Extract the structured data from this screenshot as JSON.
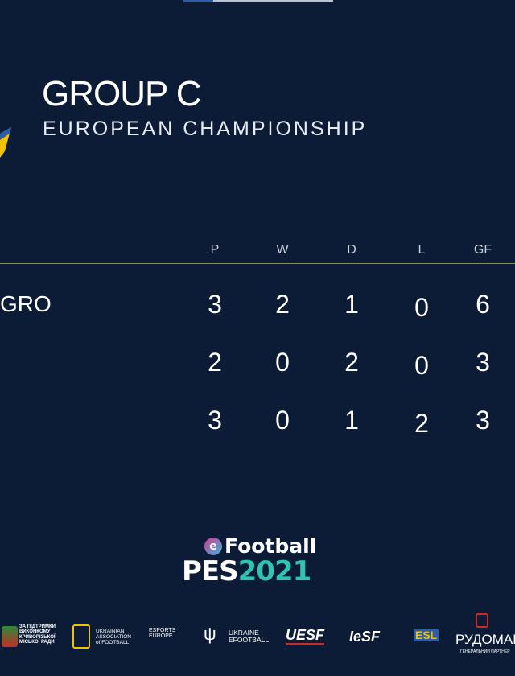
{
  "header": {
    "title": "GROUP C",
    "subtitle": "EUROPEAN CHAMPIONSHIP"
  },
  "table": {
    "columns": [
      "P",
      "W",
      "D",
      "L",
      "GF"
    ],
    "rows": [
      {
        "team": "GRO",
        "values": [
          "3",
          "2",
          "1",
          "0",
          "6"
        ]
      },
      {
        "team": "",
        "values": [
          "2",
          "0",
          "2",
          "0",
          "3"
        ]
      },
      {
        "team": "",
        "values": [
          "3",
          "0",
          "1",
          "2",
          "3"
        ]
      }
    ]
  },
  "game_logo": {
    "line1": "Football",
    "badge": "e",
    "pes": "PES",
    "year": "2021"
  },
  "sponsors": [
    {
      "text": "ЗА ПІДТРИМКИ ВИКОНКОМУ КРИВОРІЗЬКОЇ МІСЬКОЇ РАДИ"
    },
    {
      "text": "UKRAINIAN ASSOCIATION of FOOTBALL"
    },
    {
      "text": "ESPORTS EUROPE"
    },
    {
      "text": "UKRAINE EFOOTBALL"
    },
    {
      "text": "UESF"
    },
    {
      "text": "IeSF"
    },
    {
      "text": "ESL"
    },
    {
      "text": "РУДОМАЙН",
      "sub": "ГЕНЕРАЛЬНИЙ ПАРТНЕР"
    }
  ],
  "colors": {
    "background": "#0c1c36",
    "accent_teal": "#2ec4b0",
    "divider": "#8f8e3c"
  }
}
